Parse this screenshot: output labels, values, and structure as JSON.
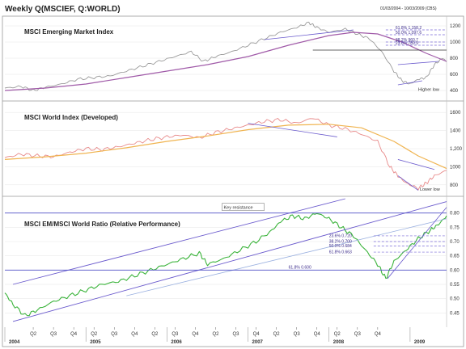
{
  "header": {
    "title": "Weekly Q(MSCIEF, Q:WORLD)",
    "date_range": "01/03/2004 - 10/03/2009 (CBS)"
  },
  "colors": {
    "emerging": "#9a9a9a",
    "world": "#e88a8a",
    "ratio": "#3cb43c",
    "moving_average_purple": "#a05aa8",
    "moving_average_orange": "#f0b450",
    "trendline": "#6a5acd",
    "fib_line": "#7a6ad8",
    "horizontal_blue": "#5050c8"
  },
  "chart_data": [
    {
      "type": "line",
      "title": "MSCI Emerging Market Index",
      "x_range": [
        2004.0,
        2009.45
      ],
      "ylim": [
        300,
        1300
      ],
      "y_ticks": [
        {
          "value": 1200,
          "label": "1200"
        },
        {
          "value": 1000,
          "label": "1000"
        },
        {
          "value": 800,
          "label": "800"
        },
        {
          "value": 600,
          "label": "600"
        },
        {
          "value": 400,
          "label": "400"
        }
      ],
      "series": [
        {
          "name": "MSCI Emerging Market Index",
          "x": [
            2004.0,
            2004.2,
            2004.35,
            2004.5,
            2004.7,
            2004.9,
            2005.1,
            2005.3,
            2005.5,
            2005.7,
            2005.9,
            2006.1,
            2006.3,
            2006.45,
            2006.6,
            2006.8,
            2007.0,
            2007.2,
            2007.4,
            2007.6,
            2007.75,
            2007.85,
            2008.0,
            2008.2,
            2008.35,
            2008.5,
            2008.65,
            2008.8,
            2008.9,
            2009.0,
            2009.1,
            2009.2,
            2009.3,
            2009.4,
            2009.45
          ],
          "values": [
            430,
            450,
            400,
            440,
            480,
            540,
            560,
            580,
            640,
            700,
            760,
            820,
            880,
            760,
            820,
            880,
            960,
            1040,
            1120,
            1180,
            1240,
            1180,
            1120,
            1160,
            1100,
            1040,
            880,
            640,
            520,
            480,
            540,
            560,
            720,
            800,
            760
          ]
        },
        {
          "name": "Moving average",
          "x": [
            2004.0,
            2004.5,
            2005.0,
            2005.5,
            2006.0,
            2006.5,
            2007.0,
            2007.5,
            2008.0,
            2008.3,
            2008.6,
            2008.9,
            2009.2,
            2009.45
          ],
          "values": [
            400,
            430,
            480,
            560,
            640,
            720,
            820,
            960,
            1080,
            1120,
            1100,
            1000,
            860,
            760
          ]
        }
      ],
      "annotations": [
        {
          "text": "61.8% 1,158.2"
        },
        {
          "text": "50.0% 1,097.6"
        },
        {
          "text": "38.2% 960.7"
        },
        {
          "text": "23.6% 789.9"
        },
        {
          "text": "Higher low"
        }
      ]
    },
    {
      "type": "line",
      "title": "MSCI World Index (Developed)",
      "x_range": [
        2004.0,
        2009.45
      ],
      "ylim": [
        700,
        1700
      ],
      "y_ticks": [
        {
          "value": 1600,
          "label": "1600"
        },
        {
          "value": 1400,
          "label": "1400"
        },
        {
          "value": 1200,
          "label": "1,200"
        },
        {
          "value": 1000,
          "label": "1000"
        },
        {
          "value": 800,
          "label": "800"
        }
      ],
      "series": [
        {
          "name": "MSCI World Index (Developed)",
          "x": [
            2004.0,
            2004.2,
            2004.4,
            2004.6,
            2004.8,
            2005.0,
            2005.2,
            2005.4,
            2005.6,
            2005.8,
            2006.0,
            2006.2,
            2006.4,
            2006.6,
            2006.8,
            2007.0,
            2007.2,
            2007.4,
            2007.6,
            2007.8,
            2008.0,
            2008.2,
            2008.4,
            2008.6,
            2008.75,
            2008.85,
            2008.95,
            2009.1,
            2009.2,
            2009.3,
            2009.45
          ],
          "values": [
            1100,
            1140,
            1120,
            1110,
            1160,
            1200,
            1190,
            1220,
            1260,
            1300,
            1330,
            1350,
            1320,
            1380,
            1420,
            1460,
            1500,
            1520,
            1480,
            1540,
            1460,
            1420,
            1360,
            1280,
            1000,
            900,
            820,
            760,
            820,
            900,
            960
          ]
        },
        {
          "name": "Moving average",
          "x": [
            2004.0,
            2004.5,
            2005.0,
            2005.5,
            2006.0,
            2006.5,
            2007.0,
            2007.5,
            2008.0,
            2008.4,
            2008.8,
            2009.1,
            2009.45
          ],
          "values": [
            1080,
            1110,
            1150,
            1210,
            1280,
            1340,
            1410,
            1460,
            1470,
            1430,
            1280,
            1120,
            980
          ]
        }
      ],
      "annotations": [
        {
          "text": "Lower low"
        }
      ]
    },
    {
      "type": "line",
      "title": "MSCI EM/MSCI World Ratio (Relative Performance)",
      "x_range": [
        2004.0,
        2009.45
      ],
      "ylim": [
        0.4,
        0.85
      ],
      "y_ticks": [
        {
          "value": 0.8,
          "label": "0.80"
        },
        {
          "value": 0.75,
          "label": "0.75"
        },
        {
          "value": 0.7,
          "label": "0.70"
        },
        {
          "value": 0.65,
          "label": "0.65"
        },
        {
          "value": 0.6,
          "label": "0.60"
        },
        {
          "value": 0.55,
          "label": "0.55"
        },
        {
          "value": 0.5,
          "label": "0.50"
        },
        {
          "value": 0.45,
          "label": "0.45"
        }
      ],
      "x_tick_labels": [
        "Q2",
        "Q3",
        "Q4",
        "Q2",
        "Q3",
        "Q4",
        "Q2",
        "Q3",
        "Q4",
        "Q2",
        "Q3",
        "Q4",
        "Q2",
        "Q3",
        "Q4",
        "Q2",
        "Q3",
        "Q4"
      ],
      "x_year_labels": [
        "2004",
        "2005",
        "2006",
        "2007",
        "2008",
        "2009"
      ],
      "series": [
        {
          "name": "MSCI EM/MSCI World Ratio",
          "x": [
            2004.0,
            2004.1,
            2004.25,
            2004.4,
            2004.6,
            2004.8,
            2005.0,
            2005.2,
            2005.4,
            2005.6,
            2005.8,
            2006.0,
            2006.2,
            2006.4,
            2006.5,
            2006.7,
            2006.9,
            2007.1,
            2007.3,
            2007.4,
            2007.55,
            2007.7,
            2007.85,
            2008.0,
            2008.15,
            2008.3,
            2008.45,
            2008.6,
            2008.7,
            2008.8,
            2008.95,
            2009.1,
            2009.25,
            2009.35,
            2009.45
          ],
          "values": [
            0.52,
            0.48,
            0.44,
            0.46,
            0.49,
            0.51,
            0.53,
            0.55,
            0.56,
            0.58,
            0.6,
            0.62,
            0.64,
            0.66,
            0.62,
            0.64,
            0.67,
            0.7,
            0.74,
            0.77,
            0.79,
            0.78,
            0.8,
            0.78,
            0.75,
            0.72,
            0.67,
            0.62,
            0.57,
            0.63,
            0.67,
            0.71,
            0.74,
            0.76,
            0.79
          ]
        }
      ],
      "annotations": [
        {
          "text": "Key resistance"
        },
        {
          "text": "23.6% 0.720"
        },
        {
          "text": "38.2% 0.700"
        },
        {
          "text": "50.0% 0.684"
        },
        {
          "text": "61.8% 0.663"
        },
        {
          "text": "61.8% 0.600"
        }
      ]
    }
  ]
}
